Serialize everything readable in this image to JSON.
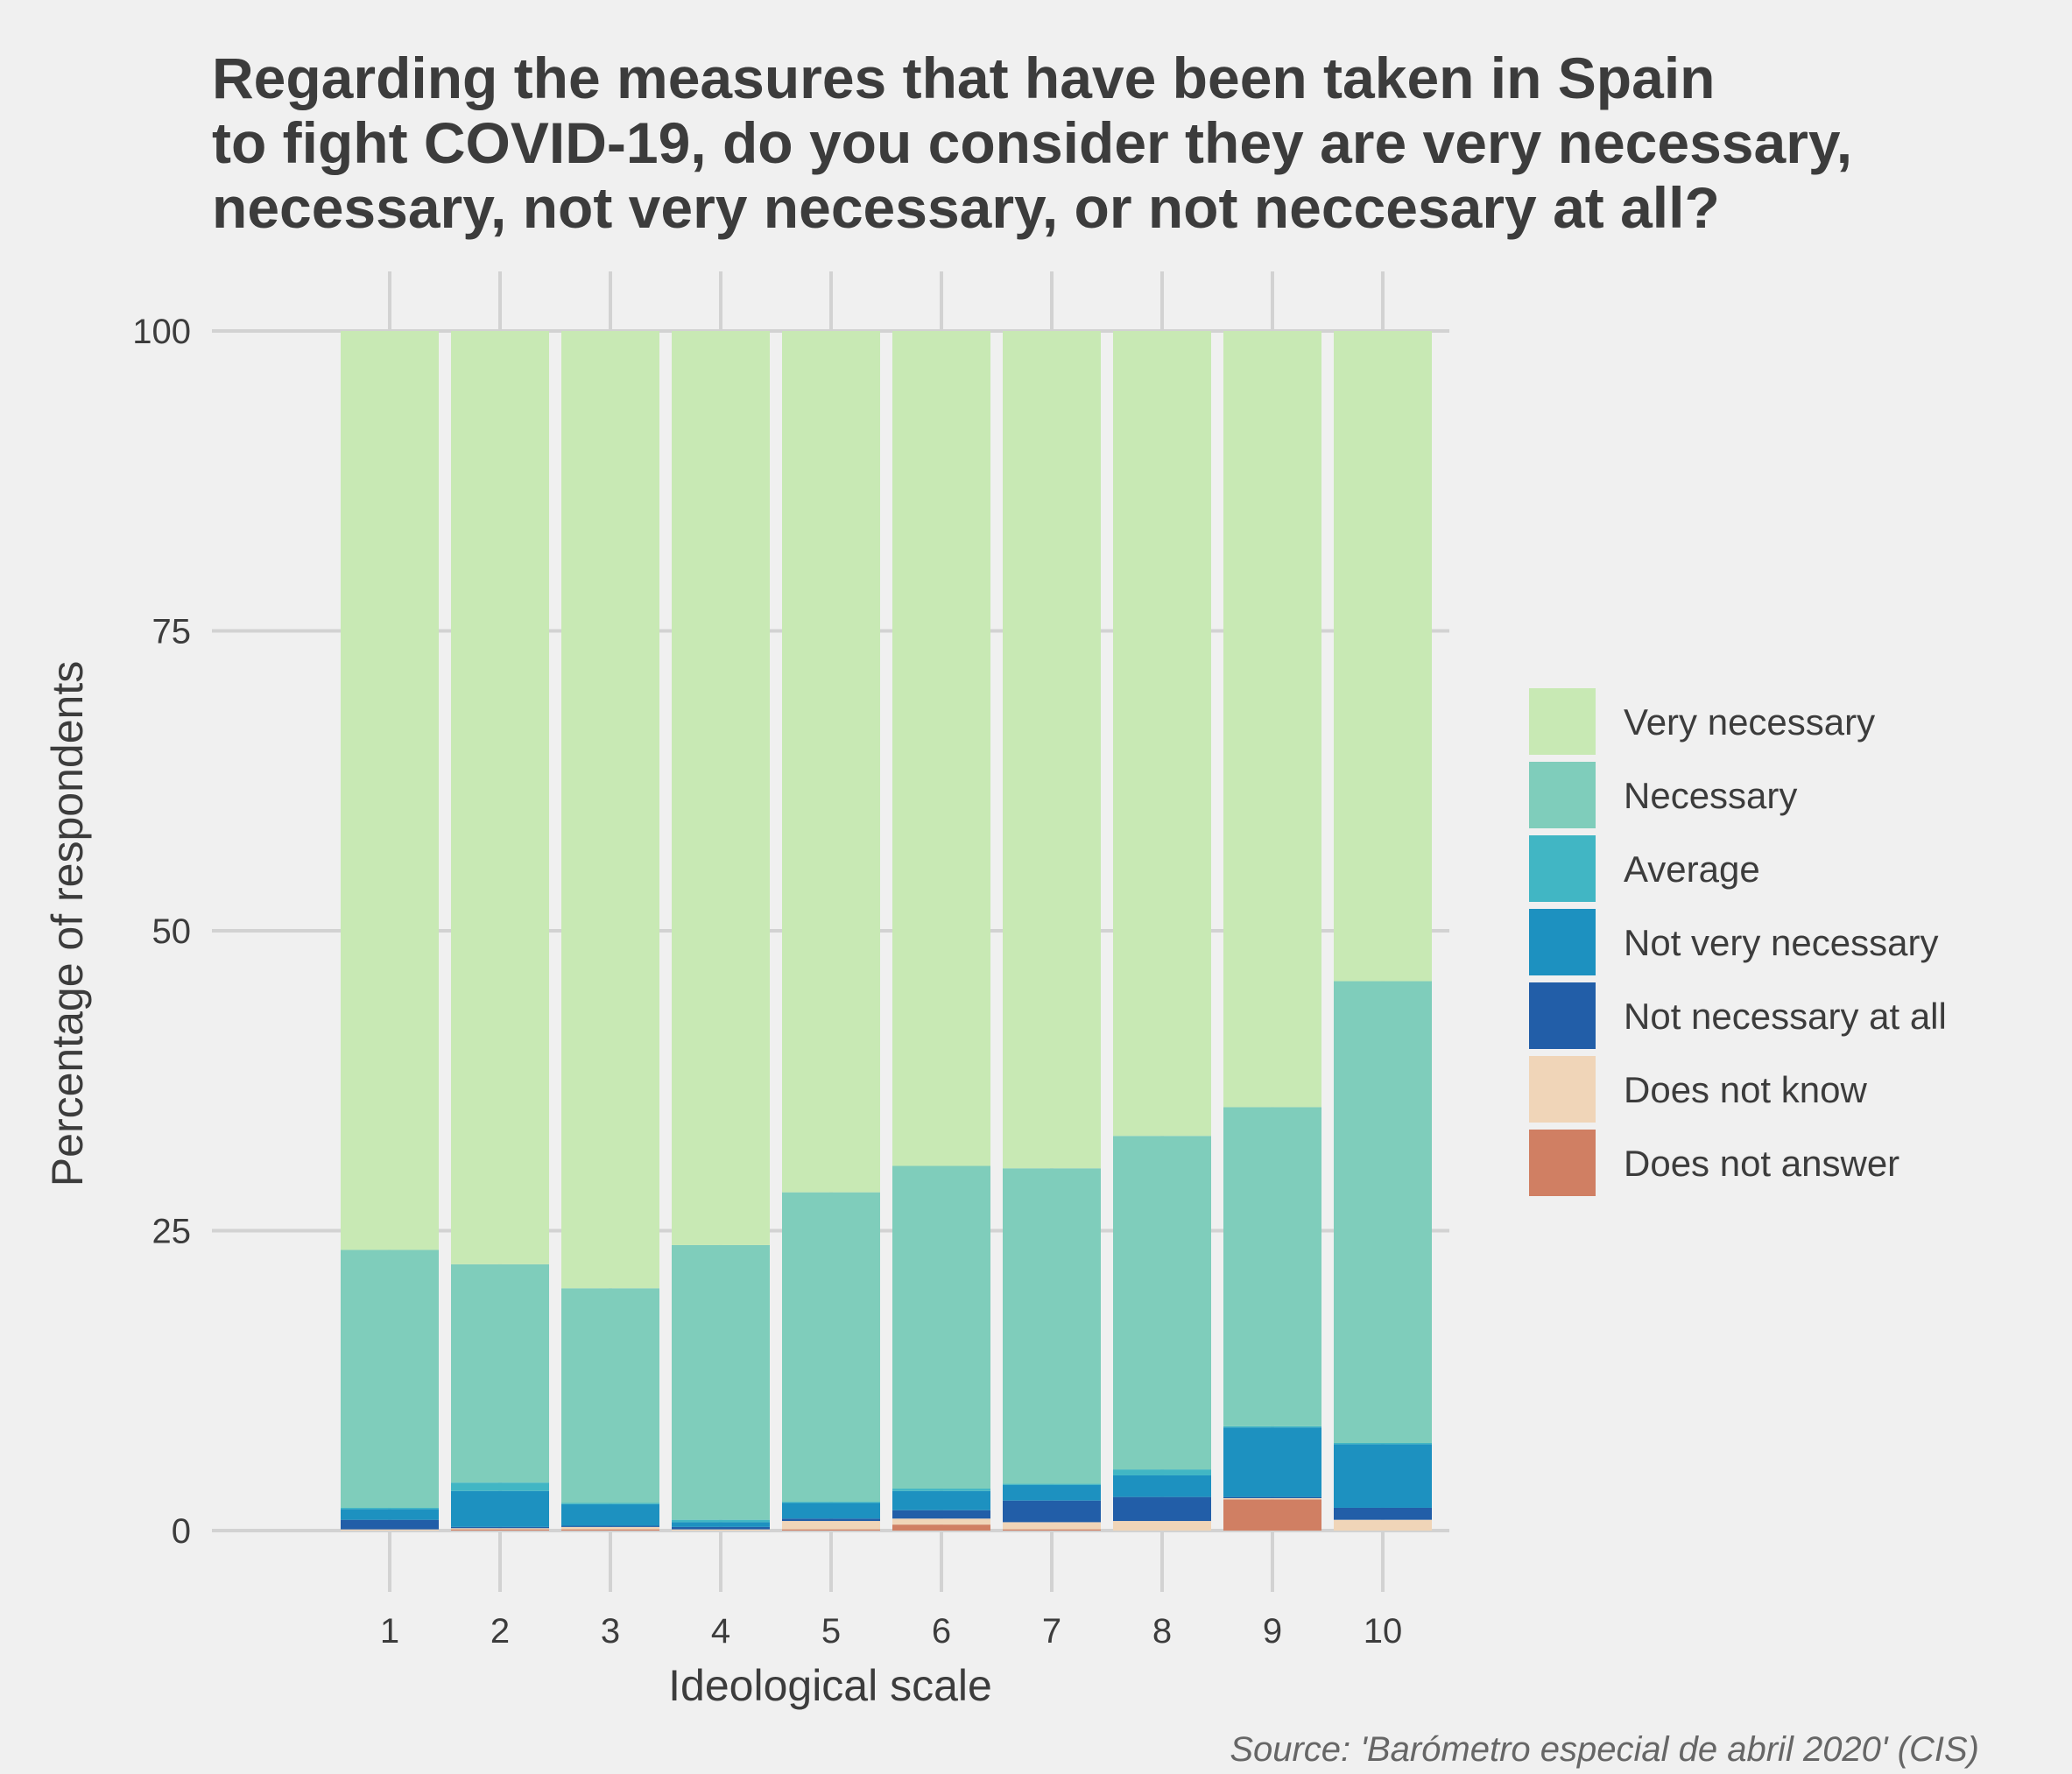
{
  "chart_data": {
    "type": "bar",
    "stacked": true,
    "title_lines": [
      "Regarding the measures that have been taken in Spain",
      "to fight COVID-19, do you consider they are very necessary,",
      "necessary, not very necessary, or not neccesary at all?"
    ],
    "xlabel": "Ideological scale",
    "ylabel": "Percentage of respondents",
    "ylim": [
      0,
      100
    ],
    "yticks": [
      0,
      25,
      50,
      75,
      100
    ],
    "categories": [
      "1",
      "2",
      "3",
      "4",
      "5",
      "6",
      "7",
      "8",
      "9",
      "10"
    ],
    "stack_order_bottom_to_top": [
      "Does not answer",
      "Does not know",
      "Not necessary at all",
      "Not very necessary",
      "Average",
      "Necessary",
      "Very necessary"
    ],
    "series": [
      {
        "name": "Very necessary",
        "color": "#c8e9b4",
        "values": [
          76.6,
          77.8,
          79.8,
          76.2,
          71.8,
          69.6,
          69.8,
          67.1,
          64.7,
          54.2
        ]
      },
      {
        "name": "Necessary",
        "color": "#7fcdbb",
        "values": [
          21.5,
          18.2,
          17.9,
          22.9,
          25.8,
          26.9,
          26.3,
          27.8,
          26.6,
          38.5
        ]
      },
      {
        "name": "Average",
        "color": "#41b6c4",
        "values": [
          0.1,
          0.7,
          0.1,
          0.2,
          0.1,
          0.2,
          0.1,
          0.5,
          0.1,
          0.1
        ]
      },
      {
        "name": "Not very necessary",
        "color": "#1d91c0",
        "values": [
          0.9,
          3.0,
          1.8,
          0.4,
          1.3,
          1.6,
          1.3,
          1.8,
          5.8,
          5.3
        ]
      },
      {
        "name": "Not necessary at all",
        "color": "#225ea8",
        "values": [
          0.8,
          0.1,
          0.1,
          0.2,
          0.2,
          0.7,
          1.8,
          2.0,
          0.1,
          1.0
        ]
      },
      {
        "name": "Does not know",
        "color": "#f0d5b8",
        "values": [
          0.1,
          0.1,
          0.2,
          0.1,
          0.7,
          0.5,
          0.6,
          0.8,
          0.1,
          0.9
        ]
      },
      {
        "name": "Does not answer",
        "color": "#d07f63",
        "values": [
          0.0,
          0.1,
          0.1,
          0.0,
          0.1,
          0.5,
          0.1,
          0.0,
          2.6,
          0.0
        ]
      }
    ],
    "legend_position": "right",
    "grid": true,
    "source": "Source: 'Barómetro especial de abril 2020' (CIS)"
  }
}
